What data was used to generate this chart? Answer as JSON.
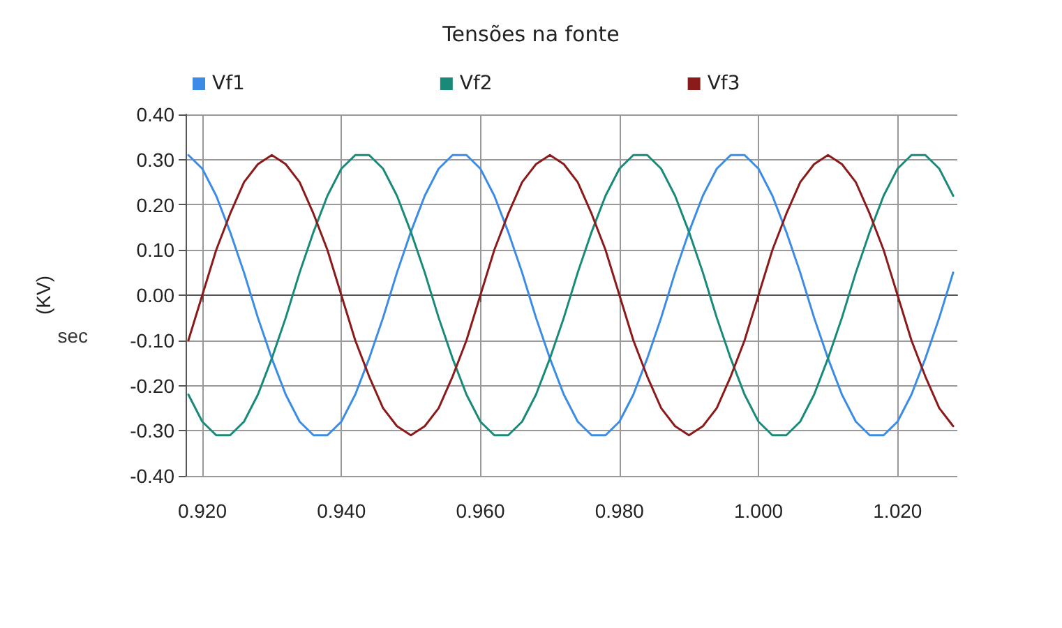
{
  "chart_data": {
    "type": "line",
    "title": "Tensões na fonte",
    "xlabel": "sec",
    "ylabel": "(KV)",
    "x": [
      0.918,
      0.92,
      0.922,
      0.924,
      0.926,
      0.928,
      0.93,
      0.932,
      0.934,
      0.936,
      0.938,
      0.94,
      0.942,
      0.944,
      0.946,
      0.948,
      0.95,
      0.952,
      0.954,
      0.956,
      0.958,
      0.96,
      0.962,
      0.964,
      0.966,
      0.968,
      0.97,
      0.972,
      0.974,
      0.976,
      0.978,
      0.98,
      0.982,
      0.984,
      0.986,
      0.988,
      0.99,
      0.992,
      0.994,
      0.996,
      0.998,
      1.0,
      1.002,
      1.004,
      1.006,
      1.008,
      1.01,
      1.012,
      1.014,
      1.016,
      1.018,
      1.02,
      1.022,
      1.024,
      1.026,
      1.028
    ],
    "series": [
      {
        "name": "Vf1",
        "color": "#3c8ce6",
        "values": [
          0.31,
          0.28,
          0.22,
          0.14,
          0.05,
          -0.05,
          -0.14,
          -0.22,
          -0.28,
          -0.31,
          -0.31,
          -0.28,
          -0.22,
          -0.14,
          -0.05,
          0.05,
          0.14,
          0.22,
          0.28,
          0.31,
          0.31,
          0.28,
          0.22,
          0.14,
          0.05,
          -0.05,
          -0.14,
          -0.22,
          -0.28,
          -0.31,
          -0.31,
          -0.28,
          -0.22,
          -0.14,
          -0.05,
          0.05,
          0.14,
          0.22,
          0.28,
          0.31,
          0.31,
          0.28,
          0.22,
          0.14,
          0.05,
          -0.05,
          -0.14,
          -0.22,
          -0.28,
          -0.31,
          -0.31,
          -0.28,
          -0.22,
          -0.14,
          -0.05,
          0.05
        ]
      },
      {
        "name": "Vf2",
        "color": "#1a8a78",
        "values": [
          -0.22,
          -0.28,
          -0.31,
          -0.31,
          -0.28,
          -0.22,
          -0.14,
          -0.05,
          0.05,
          0.14,
          0.22,
          0.28,
          0.31,
          0.31,
          0.28,
          0.22,
          0.14,
          0.05,
          -0.05,
          -0.14,
          -0.22,
          -0.28,
          -0.31,
          -0.31,
          -0.28,
          -0.22,
          -0.14,
          -0.05,
          0.05,
          0.14,
          0.22,
          0.28,
          0.31,
          0.31,
          0.28,
          0.22,
          0.14,
          0.05,
          -0.05,
          -0.14,
          -0.22,
          -0.28,
          -0.31,
          -0.31,
          -0.28,
          -0.22,
          -0.14,
          -0.05,
          0.05,
          0.14,
          0.22,
          0.28,
          0.31,
          0.31,
          0.28,
          0.22
        ]
      },
      {
        "name": "Vf3",
        "color": "#8b1a1a",
        "values": [
          -0.1,
          0,
          0.1,
          0.18,
          0.25,
          0.29,
          0.31,
          0.29,
          0.25,
          0.18,
          0.1,
          0,
          -0.1,
          -0.18,
          -0.25,
          -0.29,
          -0.31,
          -0.29,
          -0.25,
          -0.18,
          -0.1,
          0,
          0.1,
          0.18,
          0.25,
          0.29,
          0.31,
          0.29,
          0.25,
          0.18,
          0.1,
          0,
          -0.1,
          -0.18,
          -0.25,
          -0.29,
          -0.31,
          -0.29,
          -0.25,
          -0.18,
          -0.1,
          0,
          0.1,
          0.18,
          0.25,
          0.29,
          0.31,
          0.29,
          0.25,
          0.18,
          0.1,
          0,
          -0.1,
          -0.18,
          -0.25,
          -0.29
        ]
      }
    ],
    "xlim": [
      0.9176,
      1.0286
    ],
    "xticks": [
      {
        "value": 0.92,
        "label": "0.920"
      },
      {
        "value": 0.94,
        "label": "0.940"
      },
      {
        "value": 0.96,
        "label": "0.960"
      },
      {
        "value": 0.98,
        "label": "0.980"
      },
      {
        "value": 1.0,
        "label": "1.000"
      },
      {
        "value": 1.02,
        "label": "1.020"
      }
    ],
    "ylim": [
      -0.4,
      0.4
    ],
    "yticks": [
      {
        "value": -0.4,
        "label": "-0.40"
      },
      {
        "value": -0.3,
        "label": "-0.30"
      },
      {
        "value": -0.2,
        "label": "-0.20"
      },
      {
        "value": -0.1,
        "label": "-0.10"
      },
      {
        "value": 0,
        "label": "0.00"
      },
      {
        "value": 0.1,
        "label": "0.10"
      },
      {
        "value": 0.2,
        "label": "0.20"
      },
      {
        "value": 0.3,
        "label": "0.30"
      },
      {
        "value": 0.4,
        "label": "0.40"
      }
    ],
    "grid": true,
    "legend": "top",
    "marker": "none",
    "line_style": "solid"
  }
}
